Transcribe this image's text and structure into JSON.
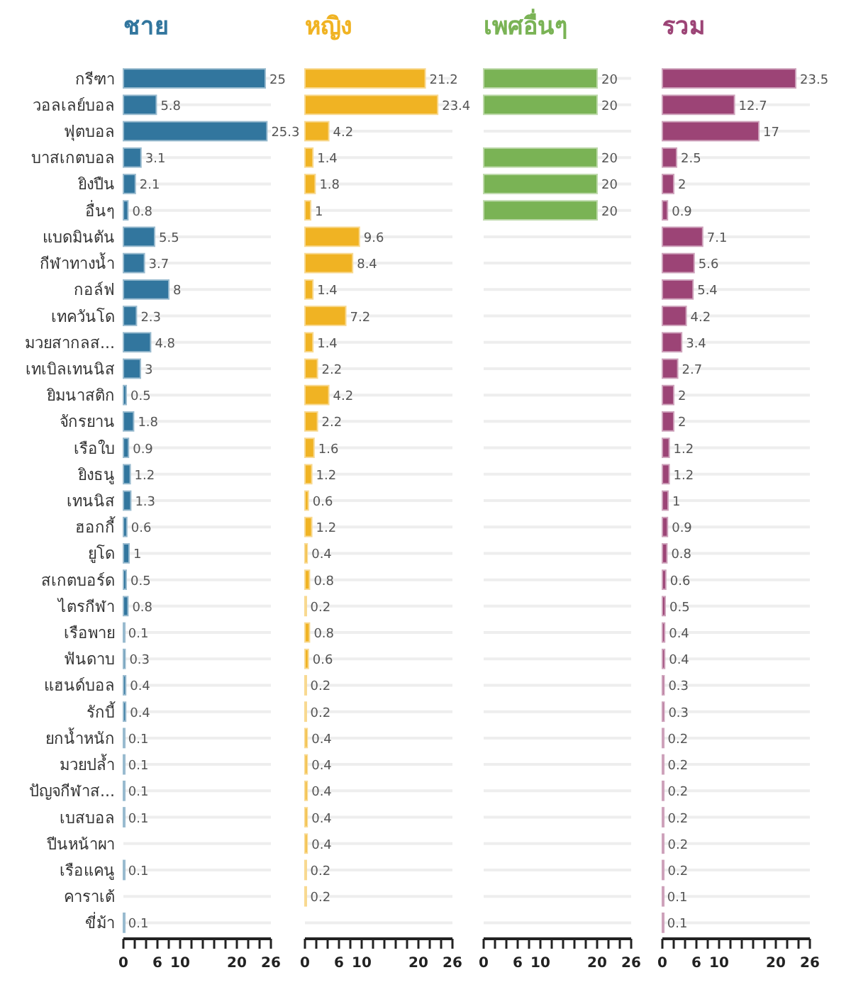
{
  "chart_data": [
    {
      "type": "bar",
      "orientation": "horizontal",
      "title": "ชาย",
      "color": "#32769e",
      "data_labels": true,
      "grid": "y",
      "categories": [
        "กรีฑา",
        "วอลเลย์บอล",
        "ฟุตบอล",
        "บาสเกตบอล",
        "ยิงปืน",
        "อื่นๆ",
        "แบดมินตัน",
        "กีฬาทางน้ำ",
        "กอล์ฟ",
        "เทควันโด",
        "มวยสากลส...",
        "เทเบิลเทนนิส",
        "ยิมนาสติก",
        "จักรยาน",
        "เรือใบ",
        "ยิงธนู",
        "เทนนิส",
        "ฮอกกี้",
        "ยูโด",
        "สเกตบอร์ด",
        "ไตรกีฬา",
        "เรือพาย",
        "ฟันดาบ",
        "แฮนด์บอล",
        "รักบี้",
        "ยกน้ำหนัก",
        "มวยปล้ำ",
        "ปัญจกีฬาส...",
        "เบสบอล",
        "ปีนหน้าผา",
        "เรือแคนู",
        "คาราเต้",
        "ขี่ม้า"
      ],
      "values": [
        25,
        5.8,
        25.3,
        3.1,
        2.1,
        0.8,
        5.5,
        3.7,
        8,
        2.3,
        4.8,
        3,
        0.5,
        1.8,
        0.9,
        1.2,
        1.3,
        0.6,
        1,
        0.5,
        0.8,
        0.1,
        0.3,
        0.4,
        0.4,
        0.1,
        0.1,
        0.1,
        0.1,
        null,
        0.1,
        null,
        0.1
      ],
      "xlim": [
        0,
        26
      ],
      "xticks": [
        0,
        {
          "value": 2,
          "label": null
        },
        {
          "value": 4,
          "label": null
        },
        6,
        {
          "value": 8,
          "label": null
        },
        10,
        {
          "value": 12,
          "label": null
        },
        {
          "value": 14,
          "label": null
        },
        {
          "value": 16,
          "label": null
        },
        {
          "value": 18,
          "label": null
        },
        20,
        {
          "value": 22,
          "label": null
        },
        {
          "value": 24,
          "label": null
        },
        26
      ]
    },
    {
      "type": "bar",
      "orientation": "horizontal",
      "title": "หญิง",
      "color": "#f0b323",
      "data_labels": true,
      "grid": "y",
      "tick_labels": "x",
      "categories": [
        null,
        null,
        null,
        null,
        null,
        null,
        null,
        null,
        null,
        null,
        null,
        null,
        null,
        null,
        null,
        null,
        null,
        null,
        null,
        null,
        null,
        null,
        null,
        null,
        null,
        null,
        null,
        null,
        null,
        null,
        null,
        null,
        null
      ],
      "values": [
        21.2,
        23.4,
        4.2,
        1.4,
        1.8,
        1,
        9.6,
        8.4,
        1.4,
        7.2,
        1.4,
        2.2,
        4.2,
        2.2,
        1.6,
        1.2,
        0.6,
        1.2,
        0.4,
        0.8,
        0.2,
        0.8,
        0.6,
        0.2,
        0.2,
        0.4,
        0.4,
        0.4,
        0.4,
        0.4,
        0.2,
        0.2,
        null
      ],
      "xlim": [
        0,
        26
      ],
      "xticks": [
        0,
        {
          "value": 2,
          "label": null
        },
        {
          "value": 4,
          "label": null
        },
        6,
        {
          "value": 8,
          "label": null
        },
        10,
        {
          "value": 12,
          "label": null
        },
        {
          "value": 14,
          "label": null
        },
        {
          "value": 16,
          "label": null
        },
        {
          "value": 18,
          "label": null
        },
        20,
        {
          "value": 22,
          "label": null
        },
        {
          "value": 24,
          "label": null
        },
        26
      ]
    },
    {
      "type": "bar",
      "orientation": "horizontal",
      "title": "เพศอื่นๆ",
      "color": "#7ab355",
      "data_labels": true,
      "grid": "y",
      "tick_labels": "x",
      "categories": [
        null,
        null,
        null,
        null,
        null,
        null,
        null,
        null,
        null,
        null,
        null,
        null,
        null,
        null,
        null,
        null,
        null,
        null,
        null,
        null,
        null,
        null,
        null,
        null,
        null,
        null,
        null,
        null,
        null,
        null,
        null,
        null,
        null
      ],
      "values": [
        20,
        20,
        null,
        20,
        20,
        20,
        null,
        null,
        null,
        null,
        null,
        null,
        null,
        null,
        null,
        null,
        null,
        null,
        null,
        null,
        null,
        null,
        null,
        null,
        null,
        null,
        null,
        null,
        null,
        null,
        null,
        null,
        null
      ],
      "xlim": [
        0,
        26
      ],
      "xticks": [
        0,
        {
          "value": 2,
          "label": null
        },
        {
          "value": 4,
          "label": null
        },
        6,
        {
          "value": 8,
          "label": null
        },
        10,
        {
          "value": 12,
          "label": null
        },
        {
          "value": 14,
          "label": null
        },
        {
          "value": 16,
          "label": null
        },
        {
          "value": 18,
          "label": null
        },
        20,
        {
          "value": 22,
          "label": null
        },
        {
          "value": 24,
          "label": null
        },
        26
      ]
    },
    {
      "type": "bar",
      "orientation": "horizontal",
      "title": "รวม",
      "color": "#9c4476",
      "data_labels": true,
      "grid": "y",
      "tick_labels": "x",
      "categories": [
        null,
        null,
        null,
        null,
        null,
        null,
        null,
        null,
        null,
        null,
        null,
        null,
        null,
        null,
        null,
        null,
        null,
        null,
        null,
        null,
        null,
        null,
        null,
        null,
        null,
        null,
        null,
        null,
        null,
        null,
        null,
        null,
        null
      ],
      "values": [
        23.5,
        12.7,
        17,
        2.5,
        2,
        0.9,
        7.1,
        5.6,
        5.4,
        4.2,
        3.4,
        2.7,
        2,
        2,
        1.2,
        1.2,
        1,
        0.9,
        0.8,
        0.6,
        0.5,
        0.4,
        0.4,
        0.3,
        0.3,
        0.2,
        0.2,
        0.2,
        0.2,
        0.2,
        0.2,
        0.1,
        0.1
      ],
      "xlim": [
        0,
        26
      ],
      "xticks": [
        0,
        {
          "value": 2,
          "label": null
        },
        {
          "value": 4,
          "label": null
        },
        6,
        {
          "value": 8,
          "label": null
        },
        10,
        {
          "value": 12,
          "label": null
        },
        {
          "value": 14,
          "label": null
        },
        {
          "value": 16,
          "label": null
        },
        {
          "value": 18,
          "label": null
        },
        20,
        {
          "value": 22,
          "label": null
        },
        {
          "value": 24,
          "label": null
        },
        26
      ]
    }
  ]
}
